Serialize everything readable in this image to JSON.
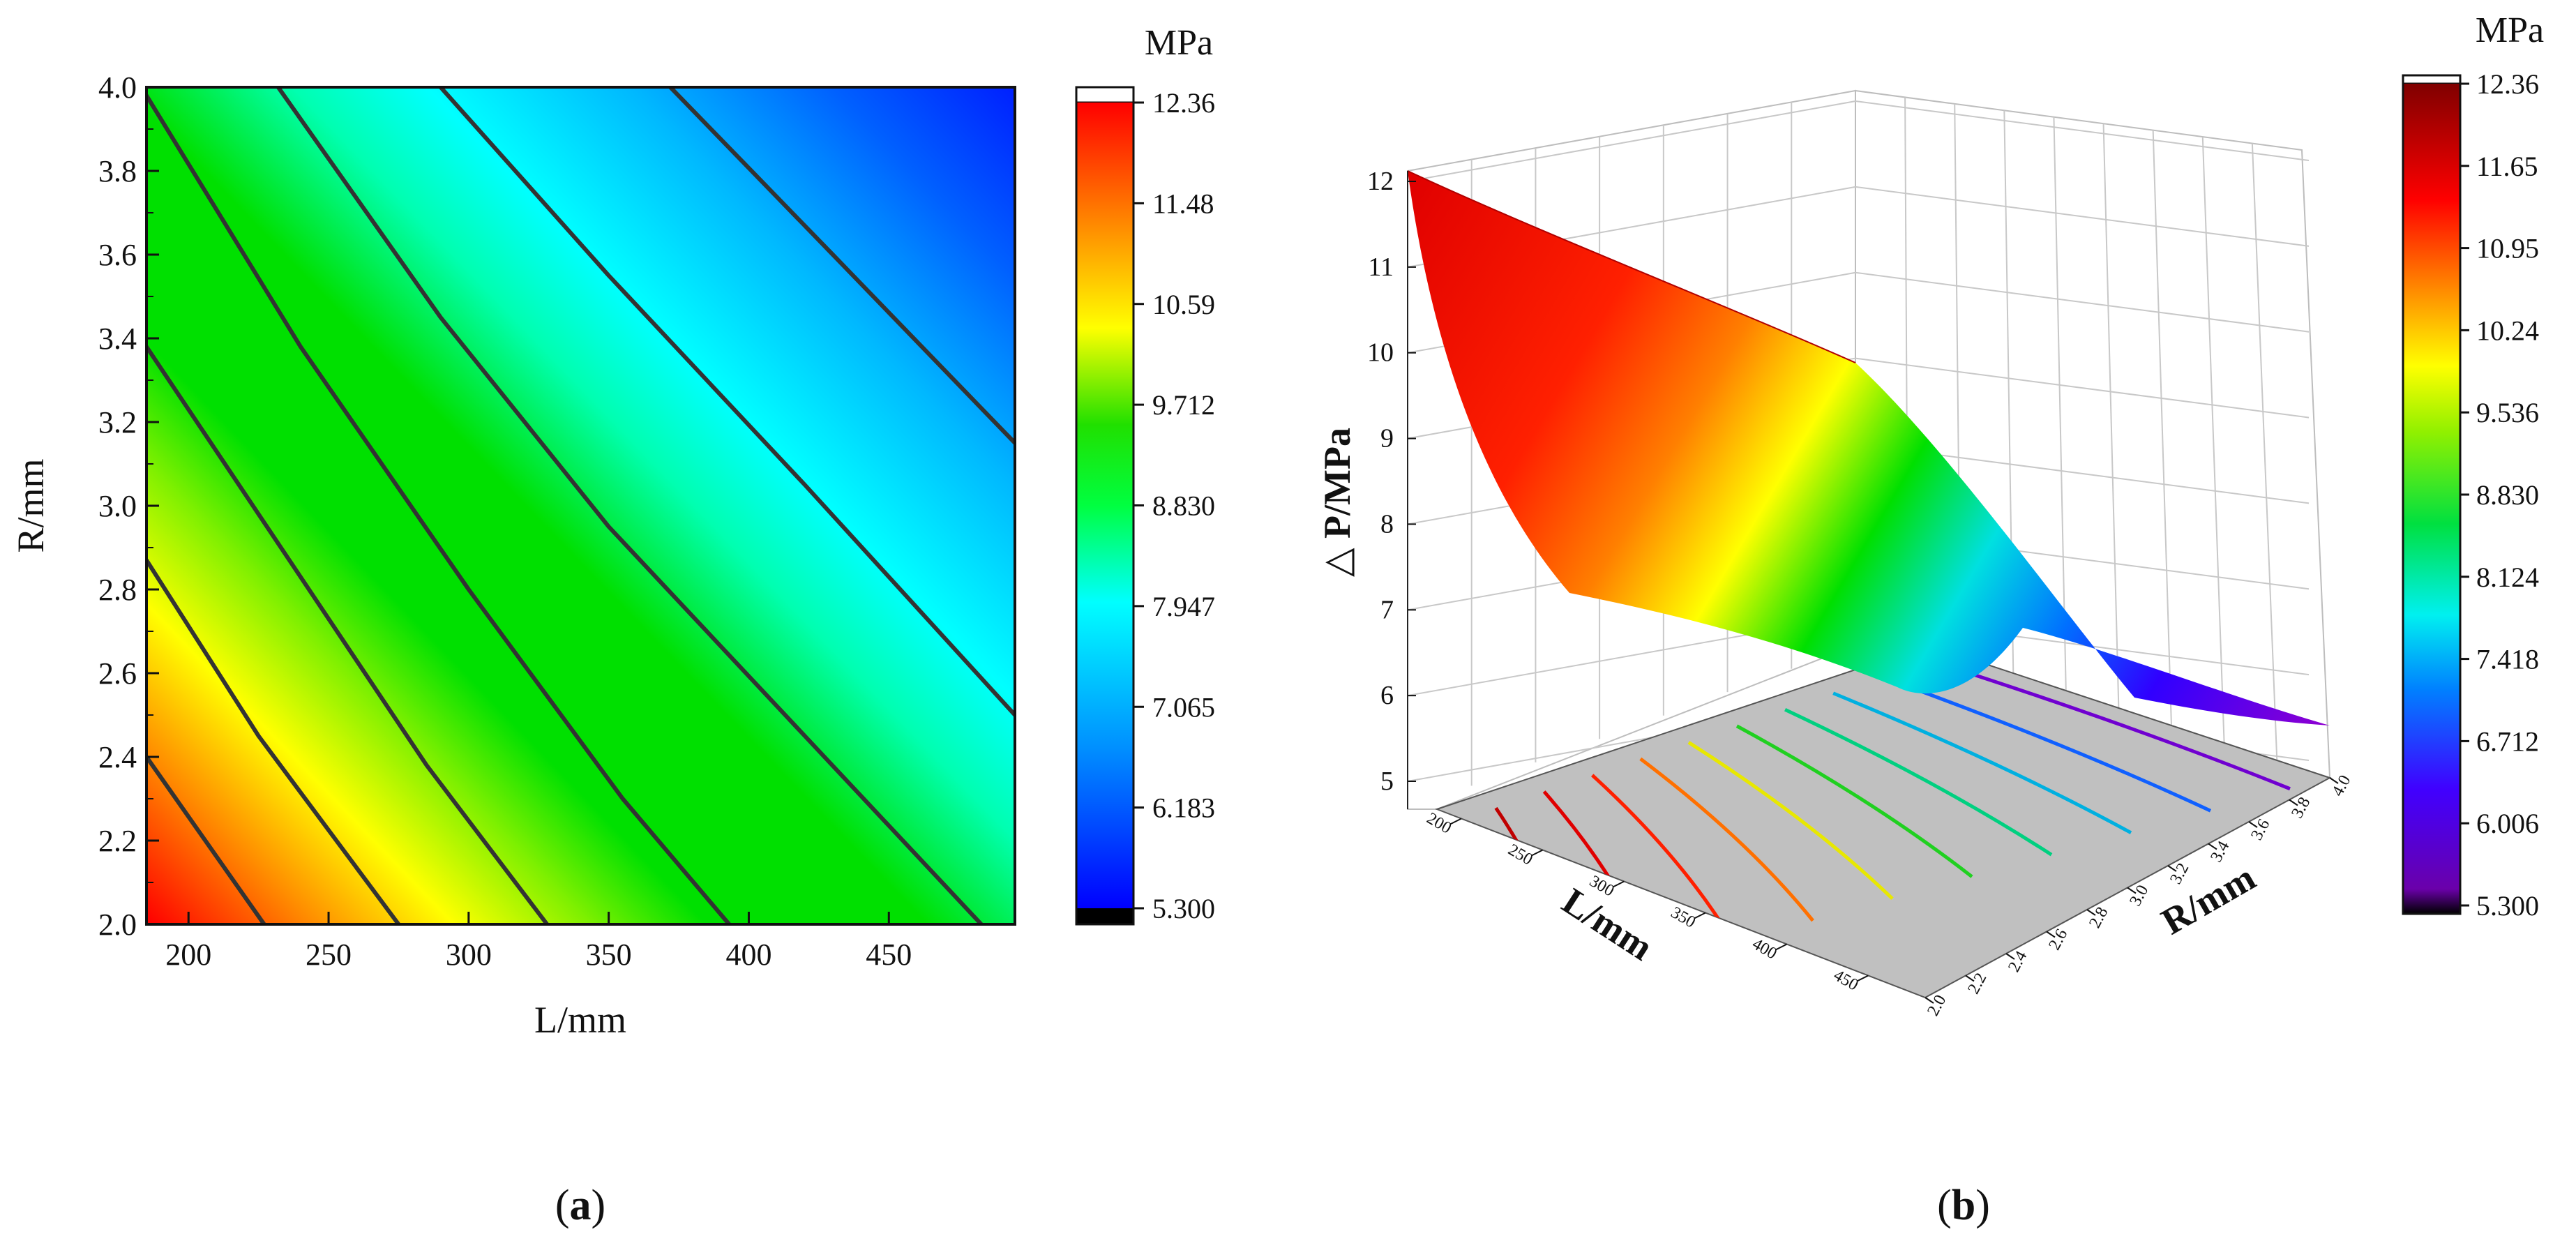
{
  "chart_data": [
    {
      "type": "heatmap",
      "panel_label_open": "(",
      "panel_label_letter": "a",
      "panel_label_close": ")",
      "xlabel": "L/mm",
      "ylabel": "R/mm",
      "xlim": [
        185,
        495
      ],
      "ylim": [
        2.0,
        4.0
      ],
      "x_ticks": [
        200,
        250,
        300,
        350,
        400,
        450
      ],
      "y_ticks": [
        2.0,
        2.2,
        2.4,
        2.6,
        2.8,
        3.0,
        3.2,
        3.4,
        3.6,
        3.8,
        4.0
      ],
      "colorbar": {
        "unit": "MPa",
        "range": [
          5.3,
          12.36
        ],
        "labels": [
          "12.36",
          "11.48",
          "10.59",
          "9.712",
          "8.830",
          "7.947",
          "7.065",
          "6.183",
          "5.300"
        ]
      },
      "contour_lines": [
        {
          "x": [
            185,
            227
          ],
          "y": [
            2.4,
            2.0
          ]
        },
        {
          "x": [
            185,
            225,
            275
          ],
          "y": [
            2.87,
            2.45,
            2.0
          ]
        },
        {
          "x": [
            185,
            235,
            285,
            328
          ],
          "y": [
            3.38,
            2.88,
            2.38,
            2.0
          ]
        },
        {
          "x": [
            185,
            240,
            300,
            355,
            393
          ],
          "y": [
            3.98,
            3.38,
            2.8,
            2.3,
            2.0
          ]
        },
        {
          "x": [
            232,
            290,
            350,
            420,
            483
          ],
          "y": [
            4.0,
            3.45,
            2.95,
            2.45,
            2.0
          ]
        },
        {
          "x": [
            290,
            350,
            420,
            495
          ],
          "y": [
            4.0,
            3.55,
            3.05,
            2.5
          ]
        },
        {
          "x": [
            372,
            430,
            495
          ],
          "y": [
            4.0,
            3.6,
            3.15
          ]
        }
      ]
    },
    {
      "type": "surface",
      "panel_label_open": "(",
      "panel_label_letter": "b",
      "panel_label_close": ")",
      "xlabel": "L/mm",
      "ylabel": "R/mm",
      "zlabel": "△ P/MPa",
      "z_ticks": [
        5,
        6,
        7,
        8,
        9,
        10,
        11,
        12
      ],
      "l_ticks": [
        "200",
        "250",
        "300",
        "350",
        "400",
        "450"
      ],
      "r_ticks": [
        "2.0",
        "2.2",
        "2.4",
        "2.6",
        "2.8",
        "3.0",
        "3.2",
        "3.4",
        "3.6",
        "3.8",
        "4.0"
      ],
      "colorbar": {
        "unit": "MPa",
        "range": [
          5.3,
          12.36
        ],
        "labels": [
          "12.36",
          "11.65",
          "10.95",
          "10.24",
          "9.536",
          "8.830",
          "8.124",
          "7.418",
          "6.712",
          "6.006",
          "5.300"
        ]
      }
    }
  ]
}
